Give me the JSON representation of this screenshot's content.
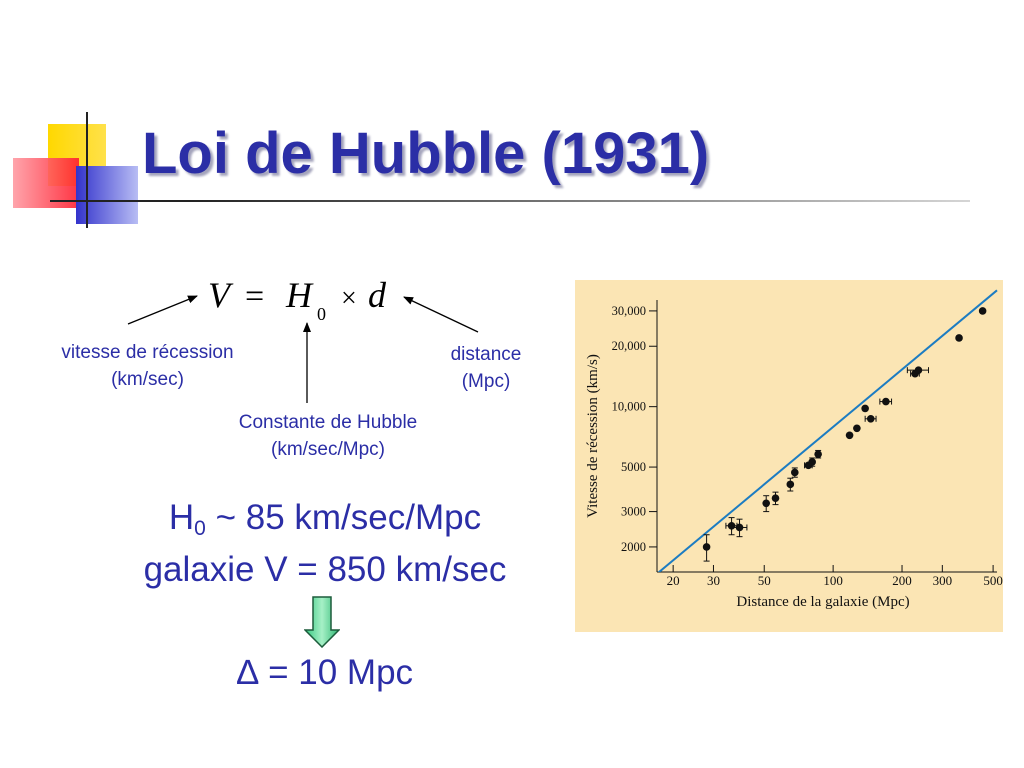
{
  "slide": {
    "title": "Loi de Hubble (1931)",
    "accent_color": "#2b2ea6"
  },
  "formula": {
    "v": "V",
    "eq": "=",
    "h": "H",
    "h_sub": "0",
    "times": "×",
    "d": "d"
  },
  "annotations": {
    "vitesse_line1": "vitesse de récession",
    "vitesse_line2": "(km/sec)",
    "distance_line1": "distance",
    "distance_line2": "(Mpc)",
    "hubble_line1": "Constante de Hubble",
    "hubble_line2": "(km/sec/Mpc)"
  },
  "results": {
    "h0_symbol": "H",
    "h0_sub": "0",
    "h0_value": " ~ 85 km/sec/Mpc",
    "galaxie": "galaxie V = 850 km/sec",
    "delta_result": "∆ = 10 Mpc"
  },
  "chart_data": {
    "type": "scatter",
    "xlabel": "Distance de la galaxie (Mpc)",
    "ylabel": "Vitesse de récession (km/s)",
    "x_scale": "log",
    "y_scale": "log",
    "xlim": [
      17,
      520
    ],
    "ylim": [
      1500,
      34000
    ],
    "x_ticks": [
      20,
      30,
      50,
      100,
      200,
      300,
      500
    ],
    "x_tick_labels": [
      "20",
      "30",
      "50",
      "100",
      "200",
      "300",
      "500"
    ],
    "y_ticks": [
      2000,
      3000,
      5000,
      10000,
      20000,
      30000
    ],
    "y_tick_labels": [
      "2000",
      "3000",
      "5000",
      "10,000",
      "20,000",
      "30,000"
    ],
    "fit_line": {
      "x": [
        17,
        520
      ],
      "y": [
        1470,
        38000
      ]
    },
    "points": [
      {
        "x": 28,
        "y": 2000,
        "xerr": 0,
        "yerr": 300
      },
      {
        "x": 36,
        "y": 2550,
        "xerr": 2,
        "yerr": 250
      },
      {
        "x": 39,
        "y": 2500,
        "xerr": 3,
        "yerr": 250
      },
      {
        "x": 51,
        "y": 3300,
        "xerr": 0,
        "yerr": 300
      },
      {
        "x": 56,
        "y": 3500,
        "xerr": 0,
        "yerr": 250
      },
      {
        "x": 65,
        "y": 4100,
        "xerr": 0,
        "yerr": 300
      },
      {
        "x": 68,
        "y": 4700,
        "xerr": 0,
        "yerr": 250
      },
      {
        "x": 78,
        "y": 5100,
        "xerr": 3,
        "yerr": 0
      },
      {
        "x": 81,
        "y": 5300,
        "xerr": 0,
        "yerr": 250
      },
      {
        "x": 86,
        "y": 5800,
        "xerr": 0,
        "yerr": 250
      },
      {
        "x": 118,
        "y": 7200,
        "xerr": 0,
        "yerr": 0
      },
      {
        "x": 127,
        "y": 7800,
        "xerr": 0,
        "yerr": 0
      },
      {
        "x": 138,
        "y": 9800,
        "xerr": 0,
        "yerr": 0
      },
      {
        "x": 146,
        "y": 8700,
        "xerr": 8,
        "yerr": 0
      },
      {
        "x": 170,
        "y": 10600,
        "xerr": 10,
        "yerr": 0
      },
      {
        "x": 228,
        "y": 14600,
        "xerr": 10,
        "yerr": 0
      },
      {
        "x": 236,
        "y": 15200,
        "xerr": 25,
        "yerr": 0
      },
      {
        "x": 355,
        "y": 22000,
        "xerr": 0,
        "yerr": 0
      },
      {
        "x": 450,
        "y": 30000,
        "xerr": 0,
        "yerr": 0
      }
    ],
    "colors": {
      "background": "#fbe5b4",
      "fit_line": "#1c7cc2",
      "points": "#111111"
    }
  }
}
